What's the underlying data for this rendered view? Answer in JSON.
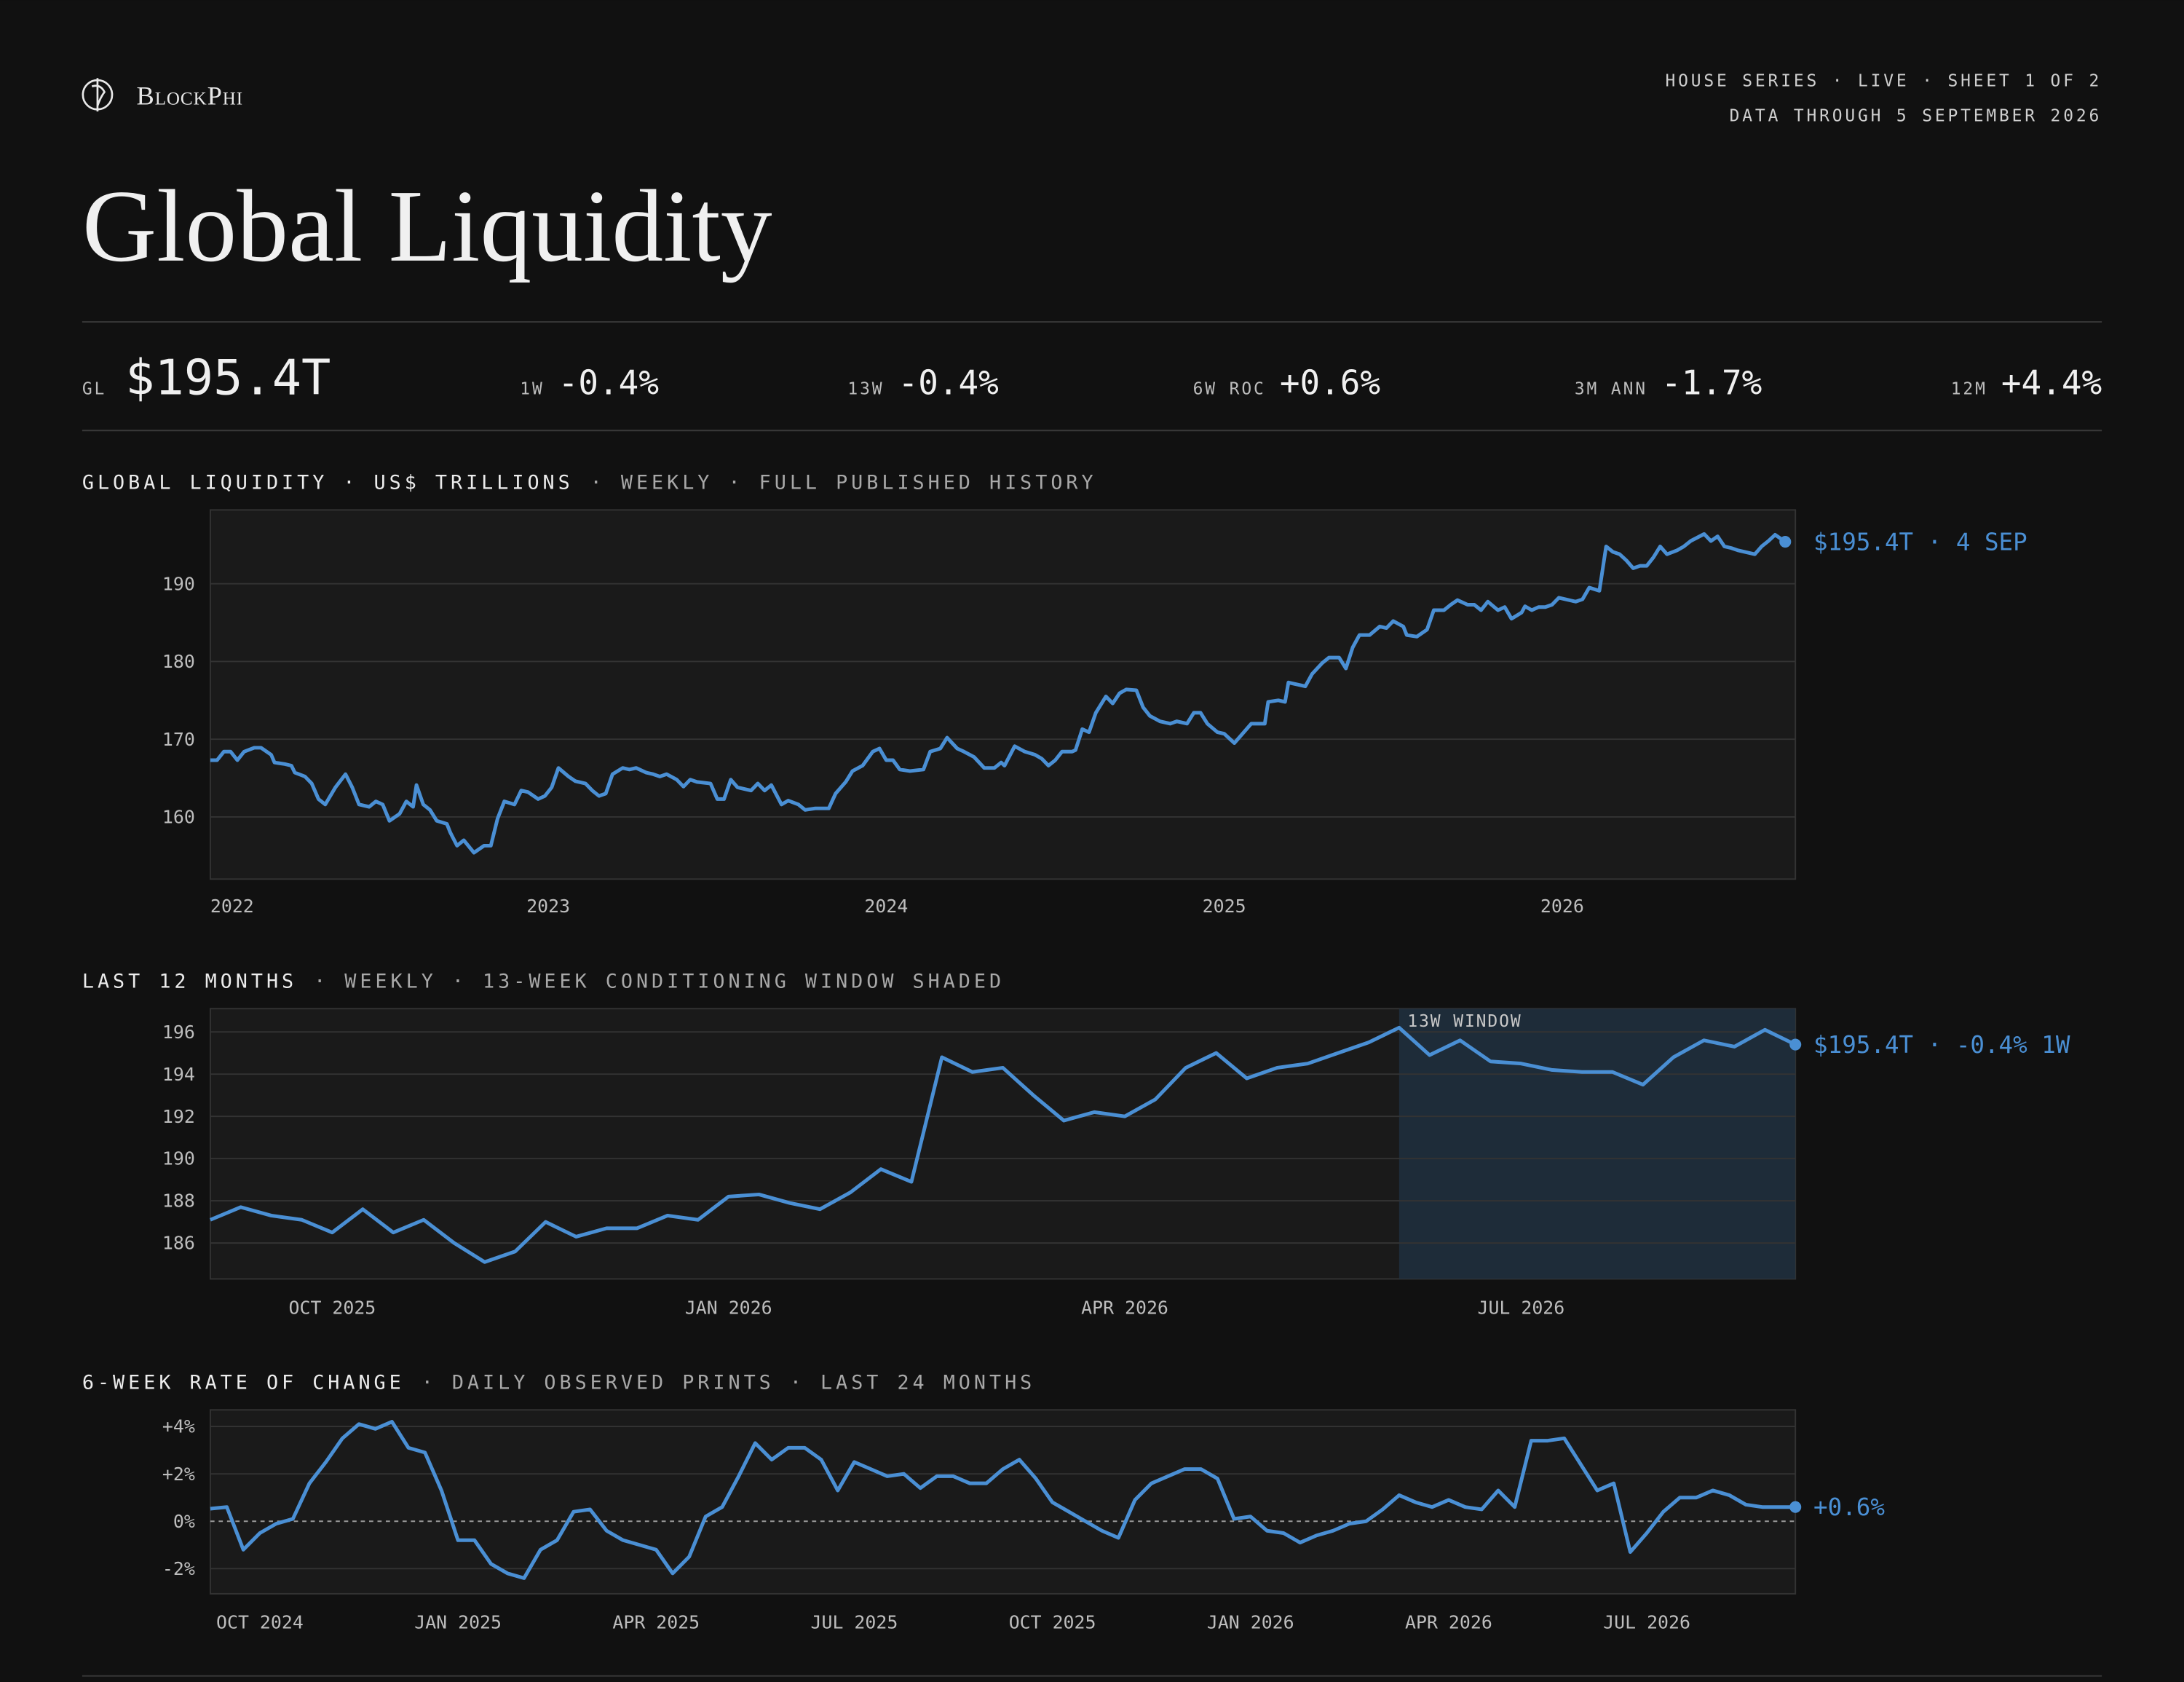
{
  "header": {
    "brand": "BlockPhi",
    "meta": [
      "HOUSE SERIES · LIVE · SHEET 1 OF 2",
      "DATA THROUGH 5 SEPTEMBER 2026"
    ],
    "title": "Global Liquidity"
  },
  "stats": [
    {
      "label": "GL",
      "value": "$195.4T"
    },
    {
      "label": "1W",
      "value": "-0.4%"
    },
    {
      "label": "13W",
      "value": "-0.4%"
    },
    {
      "label": "6W ROC",
      "value": "+0.6%"
    },
    {
      "label": "3M ANN",
      "value": "-1.7%"
    },
    {
      "label": "12M",
      "value": "+4.4%"
    }
  ],
  "chart_data": [
    {
      "type": "line",
      "title": "GLOBAL LIQUIDITY · US$ TRILLIONS",
      "subtitle": "· WEEKLY · FULL PUBLISHED HISTORY",
      "color": "#4a8fd4",
      "end_label": "$195.4T · 4 SEP",
      "x": [
        2022.0,
        2022.02,
        2022.04,
        2022.06,
        2022.08,
        2022.1,
        2022.13,
        2022.15,
        2022.18,
        2022.19,
        2022.22,
        2022.24,
        2022.25,
        2022.28,
        2022.3,
        2022.32,
        2022.34,
        2022.37,
        2022.4,
        2022.42,
        2022.44,
        2022.47,
        2022.49,
        2022.51,
        2022.53,
        2022.56,
        2022.58,
        2022.6,
        2022.61,
        2022.63,
        2022.65,
        2022.67,
        2022.7,
        2022.71,
        2022.73,
        2022.75,
        2022.78,
        2022.81,
        2022.83,
        2022.85,
        2022.87,
        2022.9,
        2022.92,
        2022.94,
        2022.97,
        2022.99,
        2023.01,
        2023.03,
        2023.06,
        2023.08,
        2023.11,
        2023.13,
        2023.15,
        2023.17,
        2023.19,
        2023.22,
        2023.24,
        2023.26,
        2023.29,
        2023.31,
        2023.33,
        2023.35,
        2023.38,
        2023.4,
        2023.42,
        2023.44,
        2023.48,
        2023.5,
        2023.52,
        2023.54,
        2023.56,
        2023.6,
        2023.62,
        2023.64,
        2023.66,
        2023.69,
        2023.71,
        2023.74,
        2023.76,
        2023.79,
        2023.83,
        2023.85,
        2023.88,
        2023.9,
        2023.93,
        2023.96,
        2023.98,
        2024.0,
        2024.02,
        2024.04,
        2024.07,
        2024.11,
        2024.13,
        2024.16,
        2024.18,
        2024.21,
        2024.23,
        2024.26,
        2024.29,
        2024.32,
        2024.34,
        2024.35,
        2024.38,
        2024.41,
        2024.44,
        2024.46,
        2024.48,
        2024.5,
        2024.52,
        2024.55,
        2024.56,
        2024.58,
        2024.6,
        2024.62,
        2024.65,
        2024.67,
        2024.69,
        2024.71,
        2024.74,
        2024.76,
        2024.78,
        2024.81,
        2024.84,
        2024.86,
        2024.89,
        2024.91,
        2024.93,
        2024.95,
        2024.98,
        2025.0,
        2025.03,
        2025.05,
        2025.08,
        2025.1,
        2025.12,
        2025.13,
        2025.16,
        2025.18,
        2025.19,
        2025.22,
        2025.24,
        2025.26,
        2025.29,
        2025.31,
        2025.34,
        2025.36,
        2025.38,
        2025.4,
        2025.43,
        2025.46,
        2025.48,
        2025.5,
        2025.53,
        2025.54,
        2025.57,
        2025.6,
        2025.62,
        2025.65,
        2025.67,
        2025.69,
        2025.72,
        2025.74,
        2025.76,
        2025.78,
        2025.81,
        2025.83,
        2025.85,
        2025.88,
        2025.89,
        2025.91,
        2025.93,
        2025.95,
        2025.97,
        2025.99,
        2026.01,
        2026.04,
        2026.06,
        2026.08,
        2026.11,
        2026.13,
        2026.15,
        2026.17,
        2026.19,
        2026.21,
        2026.23,
        2026.25,
        2026.27,
        2026.29,
        2026.31,
        2026.34,
        2026.36,
        2026.38,
        2026.42,
        2026.44,
        2026.46,
        2026.48,
        2026.5,
        2026.52,
        2026.54,
        2026.57,
        2026.59,
        2026.61,
        2026.63,
        2026.66
      ],
      "values": [
        167.3,
        167.3,
        168.4,
        168.4,
        167.3,
        168.4,
        168.9,
        168.9,
        168.0,
        167.0,
        166.8,
        166.6,
        165.7,
        165.2,
        164.3,
        162.3,
        161.6,
        163.8,
        165.5,
        163.8,
        161.6,
        161.3,
        162.0,
        161.6,
        159.5,
        160.4,
        162.0,
        161.3,
        164.1,
        161.6,
        160.9,
        159.5,
        159.1,
        158.0,
        156.3,
        157.0,
        155.4,
        156.3,
        156.3,
        159.8,
        162.0,
        161.6,
        163.4,
        163.2,
        162.3,
        162.7,
        163.8,
        166.3,
        165.2,
        164.6,
        164.3,
        163.4,
        162.7,
        163.0,
        165.5,
        166.3,
        166.1,
        166.3,
        165.7,
        165.5,
        165.2,
        165.5,
        164.8,
        163.9,
        164.8,
        164.5,
        164.3,
        162.3,
        162.3,
        164.8,
        163.8,
        163.4,
        164.3,
        163.4,
        164.1,
        161.6,
        162.1,
        161.6,
        160.9,
        161.1,
        161.1,
        163.0,
        164.5,
        165.9,
        166.6,
        168.4,
        168.8,
        167.3,
        167.3,
        166.1,
        165.9,
        166.1,
        168.4,
        168.8,
        170.2,
        168.8,
        168.4,
        167.7,
        166.3,
        166.3,
        167.0,
        166.6,
        169.1,
        168.4,
        168.0,
        167.5,
        166.6,
        167.3,
        168.4,
        168.4,
        168.6,
        171.3,
        170.9,
        173.4,
        175.5,
        174.6,
        175.9,
        176.4,
        176.3,
        174.1,
        173.0,
        172.3,
        172.0,
        172.3,
        172.0,
        173.4,
        173.4,
        172.0,
        170.9,
        170.7,
        169.5,
        170.5,
        172.0,
        172.0,
        172.0,
        174.8,
        175.0,
        174.8,
        177.3,
        177.0,
        176.8,
        178.4,
        179.8,
        180.5,
        180.5,
        179.1,
        181.8,
        183.4,
        183.4,
        184.5,
        184.3,
        185.2,
        184.5,
        183.4,
        183.2,
        184.1,
        186.6,
        186.6,
        187.3,
        187.9,
        187.3,
        187.3,
        186.6,
        187.7,
        186.6,
        187.0,
        185.5,
        186.3,
        187.1,
        186.6,
        187.0,
        187.0,
        187.3,
        188.2,
        188.0,
        187.7,
        188.0,
        189.5,
        189.1,
        194.8,
        194.1,
        193.8,
        193.0,
        192.0,
        192.3,
        192.3,
        193.4,
        194.8,
        193.8,
        194.3,
        194.8,
        195.5,
        196.4,
        195.5,
        196.1,
        194.8,
        194.6,
        194.3,
        194.1,
        193.8,
        194.8,
        195.5,
        196.3,
        195.4
      ],
      "xlim": [
        2022,
        2026.69
      ],
      "xticks": [
        2022,
        2023,
        2024,
        2025,
        2026
      ],
      "ylim": [
        152,
        199.5
      ],
      "yticks": [
        160,
        170,
        180,
        190
      ],
      "grid": true
    },
    {
      "type": "line",
      "title": "LAST 12 MONTHS",
      "subtitle": "· WEEKLY · 13-WEEK CONDITIONING WINDOW SHADED",
      "color": "#4a8fd4",
      "end_label": "$195.4T · -0.4% 1W",
      "window": {
        "label": "13W WINDOW",
        "start": 39
      },
      "categories": [
        null,
        null,
        null,
        null,
        "OCT 2025",
        null,
        null,
        null,
        null,
        null,
        null,
        null,
        null,
        null,
        null,
        null,
        null,
        "JAN 2026",
        null,
        null,
        null,
        null,
        null,
        null,
        null,
        null,
        null,
        null,
        null,
        null,
        "APR 2026",
        null,
        null,
        null,
        null,
        null,
        null,
        null,
        null,
        null,
        null,
        null,
        null,
        "JUL 2026",
        null,
        null,
        null,
        null,
        null,
        null,
        null,
        null,
        null
      ],
      "values": [
        187.1,
        187.7,
        187.3,
        187.1,
        186.5,
        187.6,
        186.5,
        187.1,
        186.0,
        185.1,
        185.6,
        187.0,
        186.3,
        186.7,
        186.7,
        187.3,
        187.1,
        188.2,
        188.3,
        187.9,
        187.6,
        188.4,
        189.5,
        188.9,
        194.8,
        194.1,
        194.3,
        193.0,
        191.8,
        192.2,
        192.0,
        192.8,
        194.3,
        195.0,
        193.8,
        194.3,
        194.5,
        195.0,
        195.5,
        196.2,
        194.9,
        195.6,
        194.6,
        194.5,
        194.2,
        194.1,
        194.1,
        193.5,
        194.8,
        195.6,
        195.3,
        196.1,
        195.4
      ],
      "ylim": [
        184.3,
        197.1
      ],
      "yticks": [
        186,
        188,
        190,
        192,
        194,
        196
      ],
      "grid": true
    },
    {
      "type": "line",
      "title": "6-WEEK RATE OF CHANGE",
      "subtitle": "· DAILY OBSERVED PRINTS · LAST 24 MONTHS",
      "color": "#4a8fd4",
      "end_label": "+0.6%",
      "zero_line": true,
      "categories": [
        null,
        null,
        null,
        "OCT 2024",
        null,
        null,
        null,
        null,
        null,
        null,
        null,
        null,
        null,
        null,
        null,
        "JAN 2025",
        null,
        null,
        null,
        null,
        null,
        null,
        null,
        null,
        null,
        null,
        null,
        "APR 2025",
        null,
        null,
        null,
        null,
        null,
        null,
        null,
        null,
        null,
        null,
        null,
        "JUL 2025",
        null,
        null,
        null,
        null,
        null,
        null,
        null,
        null,
        null,
        null,
        null,
        "OCT 2025",
        null,
        null,
        null,
        null,
        null,
        null,
        null,
        null,
        null,
        null,
        null,
        "JAN 2026",
        null,
        null,
        null,
        null,
        null,
        null,
        null,
        null,
        null,
        null,
        null,
        "APR 2026",
        null,
        null,
        null,
        null,
        null,
        null,
        null,
        null,
        null,
        null,
        null,
        "JUL 2026",
        null,
        null,
        null,
        null,
        null,
        null,
        null,
        null,
        null
      ],
      "values": [
        0.53,
        0.6,
        -1.2,
        -0.5,
        -0.1,
        0.1,
        1.6,
        2.5,
        3.5,
        4.1,
        3.9,
        4.2,
        3.1,
        2.9,
        1.3,
        -0.8,
        -0.8,
        -1.8,
        -2.2,
        -2.4,
        -1.2,
        -0.8,
        0.4,
        0.5,
        -0.4,
        -0.8,
        -1.0,
        -1.2,
        -2.2,
        -1.5,
        0.2,
        0.6,
        1.9,
        3.3,
        2.6,
        3.1,
        3.1,
        2.6,
        1.3,
        2.5,
        2.2,
        1.9,
        2.0,
        1.4,
        1.9,
        1.9,
        1.6,
        1.6,
        2.2,
        2.6,
        1.8,
        0.8,
        0.4,
        0.0,
        -0.4,
        -0.7,
        0.9,
        1.6,
        1.9,
        2.2,
        2.2,
        1.8,
        0.1,
        0.2,
        -0.4,
        -0.5,
        -0.9,
        -0.6,
        -0.4,
        -0.1,
        0.0,
        0.5,
        1.1,
        0.8,
        0.6,
        0.9,
        0.6,
        0.5,
        1.3,
        0.6,
        3.4,
        3.4,
        3.5,
        2.4,
        1.3,
        1.6,
        -1.3,
        -0.5,
        0.4,
        1.0,
        1.0,
        1.3,
        1.1,
        0.7,
        0.6,
        0.6,
        0.6
      ],
      "ylim": [
        -3.06,
        4.7
      ],
      "yticks": [
        {
          "value": 4,
          "label": "+4%"
        },
        {
          "value": 2,
          "label": "+2%"
        },
        {
          "value": 0,
          "label": "0%"
        },
        {
          "value": -2,
          "label": "-2%"
        }
      ],
      "grid": true
    }
  ]
}
